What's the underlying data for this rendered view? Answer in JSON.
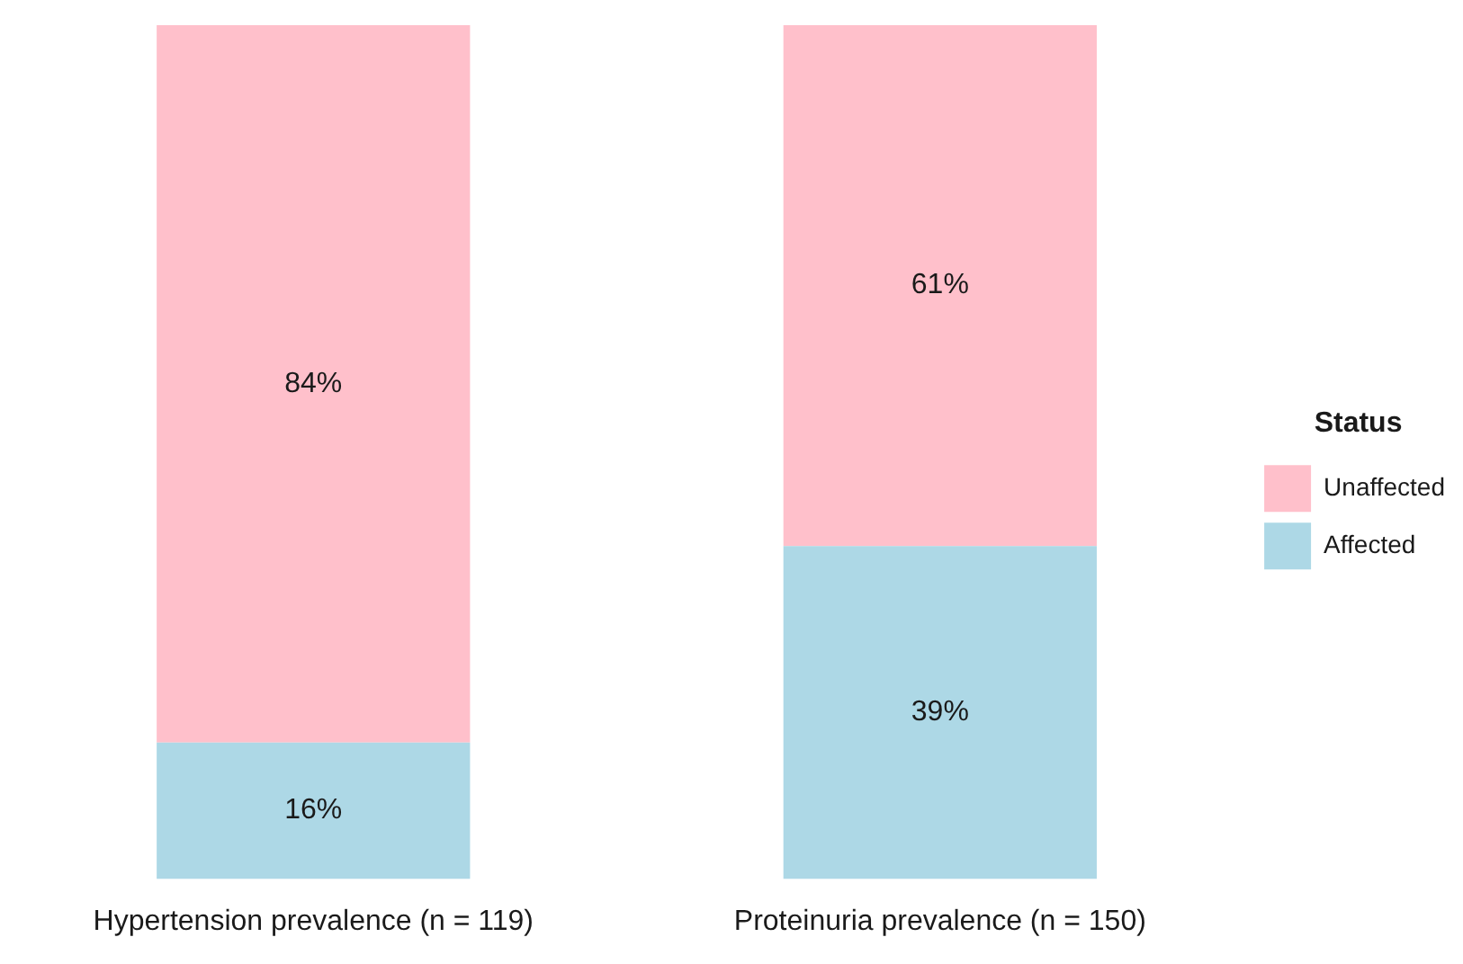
{
  "chart_data": {
    "type": "bar",
    "stacked": true,
    "categories": [
      "Hypertension prevalence (n = 119)",
      "Proteinuria prevalence (n = 150)"
    ],
    "series": [
      {
        "name": "Affected",
        "color": "#add8e6",
        "values": [
          16,
          39
        ],
        "value_labels": [
          "16%",
          "39%"
        ]
      },
      {
        "name": "Unaffected",
        "color": "#ffc0cb",
        "values": [
          84,
          61
        ],
        "value_labels": [
          "84%",
          "61%"
        ]
      }
    ],
    "legend_title": "Status",
    "legend": "right",
    "grid": false,
    "tick_labels": "x"
  }
}
